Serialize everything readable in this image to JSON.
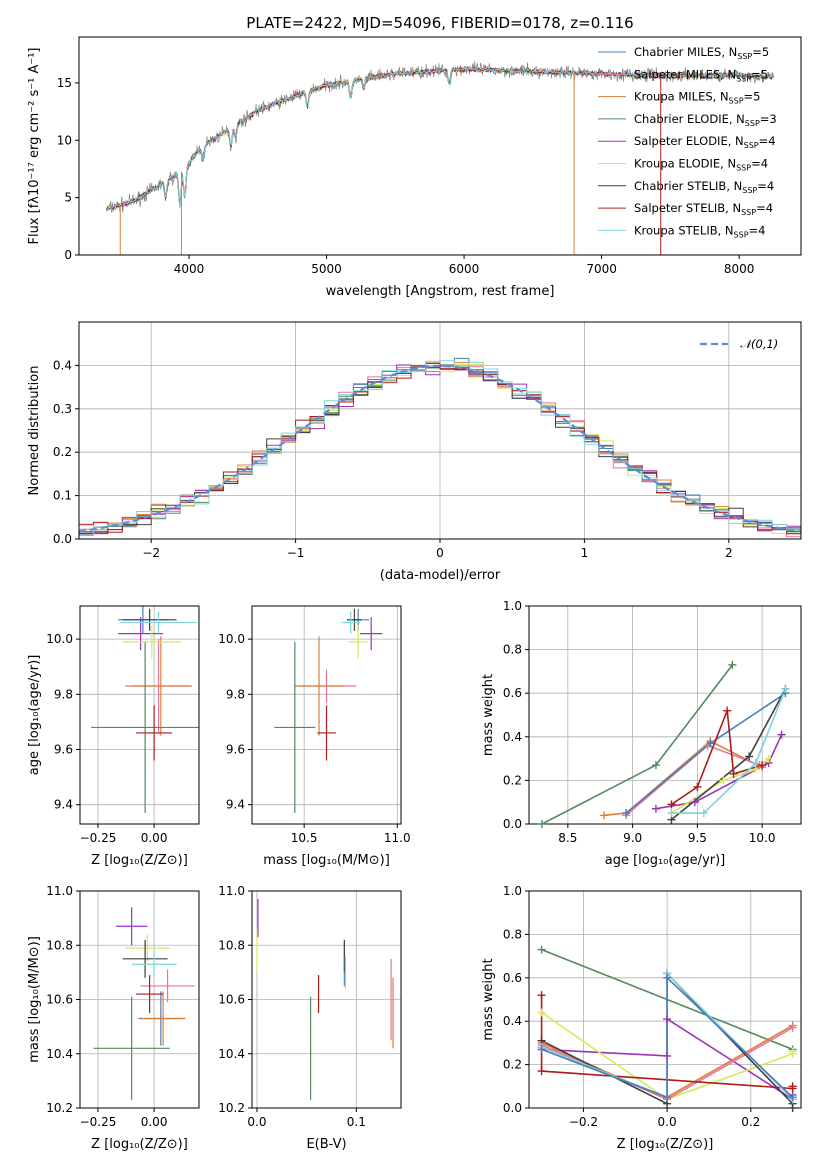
{
  "chart_data": [
    {
      "id": "spectrum",
      "type": "line",
      "title": "PLATE=2422, MJD=54096, FIBERID=0178, z=0.116",
      "xlabel": "wavelength [Angstrom, rest frame]",
      "ylabel": "Flux [fλ10⁻¹⁷ erg cm⁻² s⁻¹ A⁻¹]",
      "xlim": [
        3200,
        8450
      ],
      "ylim": [
        0,
        19
      ],
      "xticks": [
        "4000",
        "5000",
        "6000",
        "7000",
        "8000"
      ],
      "yticks": [
        "0",
        "5",
        "10",
        "15"
      ],
      "legend_position": "upper-right",
      "legend": [
        {
          "label": "Chabrier MILES, N",
          "sub": "SSP",
          "suffix": "=5",
          "color": "#4a7fbf"
        },
        {
          "label": "Salpeter MILES, N",
          "sub": "SSP",
          "suffix": "=5",
          "color": "#e8749a"
        },
        {
          "label": "Kroupa MILES, N",
          "sub": "SSP",
          "suffix": "=5",
          "color": "#d9813a"
        },
        {
          "label": "Chabrier ELODIE, N",
          "sub": "SSP",
          "suffix": "=3",
          "color": "#548a5e"
        },
        {
          "label": "Salpeter ELODIE, N",
          "sub": "SSP",
          "suffix": "=4",
          "color": "#9a35b8"
        },
        {
          "label": "Kroupa ELODIE, N",
          "sub": "SSP",
          "suffix": "=4",
          "color": "#d7ea5c"
        },
        {
          "label": "Chabrier STELIB, N",
          "sub": "SSP",
          "suffix": "=4",
          "color": "#404040"
        },
        {
          "label": "Salpeter STELIB, N",
          "sub": "SSP",
          "suffix": "=4",
          "color": "#b01b1b"
        },
        {
          "label": "Kroupa STELIB, N",
          "sub": "SSP",
          "suffix": "=4",
          "color": "#7fd3dc"
        }
      ],
      "continuum": {
        "x": [
          3400,
          3600,
          3800,
          3950,
          4100,
          4300,
          4500,
          4800,
          5000,
          5500,
          6000,
          6500,
          7000,
          7500,
          8000,
          8200
        ],
        "y": [
          4.0,
          4.7,
          6.2,
          7.3,
          9.5,
          11.0,
          12.6,
          14.0,
          14.8,
          15.8,
          16.2,
          16.0,
          15.8,
          15.6,
          15.7,
          15.5
        ]
      }
    },
    {
      "id": "residuals",
      "type": "bar",
      "xlabel": "(data-model)/error",
      "ylabel": "Normed distribution",
      "xlim": [
        -2.5,
        2.5
      ],
      "ylim": [
        0,
        0.5
      ],
      "xticks": [
        "−2",
        "−1",
        "0",
        "1",
        "2"
      ],
      "yticks": [
        "0.0",
        "0.1",
        "0.2",
        "0.3",
        "0.4"
      ],
      "legend": [
        {
          "label": "𝒩(0,1)",
          "color": "#5b8fd6"
        }
      ],
      "legend_position": "upper-right"
    },
    {
      "id": "age-vs-Z",
      "type": "scatter",
      "xlabel": "Z [log₁₀(Z/Z⊙)]",
      "ylabel": "age  [log₁₀(age/yr)]",
      "xlim": [
        -0.33,
        0.2
      ],
      "ylim": [
        9.33,
        10.12
      ],
      "xticks": [
        "−0.25",
        "0.00"
      ],
      "yticks": [
        "9.4",
        "9.6",
        "9.8",
        "10.0"
      ],
      "points": [
        {
          "x": -0.05,
          "y": 10.07,
          "xerr": 0.11,
          "yerr": 0.05,
          "color": "#4a7fbf"
        },
        {
          "x": 0.02,
          "y": 9.83,
          "xerr": 0.15,
          "yerr": 0.17,
          "color": "#e8749a"
        },
        {
          "x": 0.03,
          "y": 9.83,
          "xerr": 0.13,
          "yerr": 0.18,
          "color": "#d9813a"
        },
        {
          "x": -0.04,
          "y": 9.68,
          "xerr": 0.24,
          "yerr": 0.31,
          "color": "#548a5e"
        },
        {
          "x": -0.06,
          "y": 10.02,
          "xerr": 0.1,
          "yerr": 0.06,
          "color": "#9a35b8"
        },
        {
          "x": -0.01,
          "y": 9.99,
          "xerr": 0.13,
          "yerr": 0.06,
          "color": "#d7ea5c"
        },
        {
          "x": -0.02,
          "y": 10.07,
          "xerr": 0.12,
          "yerr": 0.04,
          "color": "#404040"
        },
        {
          "x": -0.0,
          "y": 9.66,
          "xerr": 0.08,
          "yerr": 0.1,
          "color": "#b01b1b"
        },
        {
          "x": 0.02,
          "y": 10.06,
          "xerr": 0.17,
          "yerr": 0.04,
          "color": "#7fd3dc"
        }
      ]
    },
    {
      "id": "age-vs-mass",
      "type": "scatter",
      "xlabel": "mass [log₁₀(M/M⊙)]",
      "ylabel": "",
      "xlim": [
        10.22,
        11.02
      ],
      "ylim": [
        9.33,
        10.12
      ],
      "xticks": [
        "10.5",
        "11.0"
      ],
      "yticks": [
        "9.4",
        "9.6",
        "9.8",
        "10.0"
      ],
      "points": [
        {
          "x": 10.79,
          "y": 10.07,
          "xerr": 0.06,
          "yerr": 0.04,
          "color": "#4a7fbf"
        },
        {
          "x": 10.62,
          "y": 9.83,
          "xerr": 0.16,
          "yerr": 0.06,
          "color": "#e8749a"
        },
        {
          "x": 10.58,
          "y": 9.83,
          "xerr": 0.13,
          "yerr": 0.18,
          "color": "#d9813a"
        },
        {
          "x": 10.45,
          "y": 9.68,
          "xerr": 0.11,
          "yerr": 0.31,
          "color": "#548a5e"
        },
        {
          "x": 10.86,
          "y": 10.02,
          "xerr": 0.06,
          "yerr": 0.06,
          "color": "#9a35b8"
        },
        {
          "x": 10.79,
          "y": 9.99,
          "xerr": 0.05,
          "yerr": 0.06,
          "color": "#d7ea5c"
        },
        {
          "x": 10.77,
          "y": 10.07,
          "xerr": 0.04,
          "yerr": 0.04,
          "color": "#404040"
        },
        {
          "x": 10.62,
          "y": 9.66,
          "xerr": 0.05,
          "yerr": 0.1,
          "color": "#b01b1b"
        },
        {
          "x": 10.75,
          "y": 10.06,
          "xerr": 0.05,
          "yerr": 0.04,
          "color": "#7fd3dc"
        }
      ]
    },
    {
      "id": "massweight-vs-age",
      "type": "line",
      "xlabel": "age  [log₁₀(age/yr)]",
      "ylabel": "mass weight",
      "xlim": [
        8.2,
        10.3
      ],
      "ylim": [
        0,
        1
      ],
      "xticks": [
        "8.5",
        "9.0",
        "9.5",
        "10.0"
      ],
      "yticks": [
        "0.0",
        "0.2",
        "0.4",
        "0.6",
        "0.8",
        "1.0"
      ],
      "series": [
        {
          "color": "#548a5e",
          "x": [
            8.3,
            9.18,
            9.77
          ],
          "y": [
            0.0,
            0.27,
            0.73
          ]
        },
        {
          "color": "#d9813a",
          "x": [
            8.78,
            8.95,
            9.6,
            10.0
          ],
          "y": [
            0.04,
            0.05,
            0.38,
            0.26
          ]
        },
        {
          "color": "#e8749a",
          "x": [
            8.95,
            9.58,
            9.98
          ],
          "y": [
            0.04,
            0.36,
            0.27
          ]
        },
        {
          "color": "#4a7fbf",
          "x": [
            8.95,
            9.6,
            10.18
          ],
          "y": [
            0.05,
            0.37,
            0.6
          ]
        },
        {
          "color": "#9a35b8",
          "x": [
            9.18,
            9.48,
            10.05,
            10.15
          ],
          "y": [
            0.07,
            0.1,
            0.28,
            0.41
          ]
        },
        {
          "color": "#d7ea5c",
          "x": [
            9.3,
            9.7,
            9.95,
            10.05
          ],
          "y": [
            0.05,
            0.2,
            0.25,
            0.3
          ]
        },
        {
          "color": "#404040",
          "x": [
            9.3,
            9.9,
            10.18
          ],
          "y": [
            0.02,
            0.31,
            0.62
          ]
        },
        {
          "color": "#b01b1b",
          "x": [
            9.3,
            9.5,
            9.73,
            9.78,
            10.0
          ],
          "y": [
            0.09,
            0.17,
            0.52,
            0.23,
            0.27
          ]
        },
        {
          "color": "#7fd3dc",
          "x": [
            9.3,
            9.55,
            9.95,
            10.18
          ],
          "y": [
            0.05,
            0.05,
            0.28,
            0.62
          ]
        }
      ]
    },
    {
      "id": "mass-vs-Z",
      "type": "scatter",
      "xlabel": "Z [log₁₀(Z/Z⊙)]",
      "ylabel": "mass [log₁₀(M/M⊙)]",
      "xlim": [
        -0.33,
        0.2
      ],
      "ylim": [
        10.2,
        11.0
      ],
      "xticks": [
        "−0.25",
        "0.00"
      ],
      "yticks": [
        "10.2",
        "10.4",
        "10.6",
        "10.8",
        "11.0"
      ],
      "points": [
        {
          "x": 0.03,
          "y": 10.53,
          "xerr": 0.1,
          "yerr": 0.1,
          "color": "#4a7fbf"
        },
        {
          "x": 0.06,
          "y": 10.65,
          "xerr": 0.12,
          "yerr": 0.06,
          "color": "#e8749a"
        },
        {
          "x": 0.04,
          "y": 10.53,
          "xerr": 0.1,
          "yerr": 0.1,
          "color": "#d9813a"
        },
        {
          "x": -0.1,
          "y": 10.42,
          "xerr": 0.17,
          "yerr": 0.19,
          "color": "#548a5e"
        },
        {
          "x": -0.1,
          "y": 10.87,
          "xerr": 0.07,
          "yerr": 0.07,
          "color": "#9a35b8"
        },
        {
          "x": -0.03,
          "y": 10.79,
          "xerr": 0.1,
          "yerr": 0.05,
          "color": "#d7ea5c"
        },
        {
          "x": -0.04,
          "y": 10.75,
          "xerr": 0.1,
          "yerr": 0.07,
          "color": "#404040"
        },
        {
          "x": -0.02,
          "y": 10.62,
          "xerr": 0.06,
          "yerr": 0.07,
          "color": "#b01b1b"
        },
        {
          "x": 0.0,
          "y": 10.73,
          "xerr": 0.1,
          "yerr": 0.05,
          "color": "#7fd3dc"
        }
      ]
    },
    {
      "id": "mass-vs-ebv",
      "type": "scatter",
      "xlabel": "E(B-V)",
      "ylabel": "",
      "xlim": [
        -0.005,
        0.145
      ],
      "ylim": [
        10.2,
        11.0
      ],
      "xticks": [
        "0.0",
        "0.1"
      ],
      "yticks": [
        "10.2",
        "10.4",
        "10.6",
        "10.8",
        "11.0"
      ],
      "points": [
        {
          "x": 0.088,
          "y": 10.73,
          "xerr": 0,
          "yerr": 0.08,
          "color": "#4a7fbf"
        },
        {
          "x": 0.135,
          "y": 10.6,
          "xerr": 0,
          "yerr": 0.15,
          "color": "#e8749a"
        },
        {
          "x": 0.137,
          "y": 10.55,
          "xerr": 0,
          "yerr": 0.13,
          "color": "#d9813a"
        },
        {
          "x": 0.054,
          "y": 10.42,
          "xerr": 0,
          "yerr": 0.19,
          "color": "#548a5e"
        },
        {
          "x": 0.001,
          "y": 10.9,
          "xerr": 0,
          "yerr": 0.07,
          "color": "#9a35b8"
        },
        {
          "x": 0.0,
          "y": 10.78,
          "xerr": 0,
          "yerr": 0.08,
          "color": "#d7ea5c"
        },
        {
          "x": 0.088,
          "y": 10.76,
          "xerr": 0,
          "yerr": 0.06,
          "color": "#404040"
        },
        {
          "x": 0.062,
          "y": 10.62,
          "xerr": 0,
          "yerr": 0.07,
          "color": "#b01b1b"
        },
        {
          "x": 0.089,
          "y": 10.7,
          "xerr": 0,
          "yerr": 0.06,
          "color": "#7fd3dc"
        }
      ]
    },
    {
      "id": "massweight-vs-Z",
      "type": "line",
      "xlabel": "Z [log₁₀(Z/Z⊙)]",
      "ylabel": "mass weight",
      "xlim": [
        -0.33,
        0.32
      ],
      "ylim": [
        0,
        1
      ],
      "xticks": [
        "−0.2",
        "0.0",
        "0.2"
      ],
      "yticks": [
        "0.0",
        "0.2",
        "0.4",
        "0.6",
        "0.8",
        "1.0"
      ],
      "series": [
        {
          "color": "#548a5e",
          "x": [
            -0.3,
            0.3
          ],
          "y": [
            0.73,
            0.27
          ]
        },
        {
          "color": "#9a35b8",
          "x": [
            -0.3,
            0.0,
            0.0,
            0.3,
            0.3
          ],
          "y": [
            0.27,
            0.24,
            0.41,
            0.04,
            0.06
          ]
        },
        {
          "color": "#d7ea5c",
          "x": [
            -0.3,
            0.0,
            0.3,
            0.3
          ],
          "y": [
            0.44,
            0.04,
            0.25,
            0.26
          ]
        },
        {
          "color": "#d9813a",
          "x": [
            -0.3,
            0.0,
            0.0,
            0.3
          ],
          "y": [
            0.3,
            0.04,
            0.05,
            0.38
          ]
        },
        {
          "color": "#e8749a",
          "x": [
            -0.3,
            0.0,
            0.3
          ],
          "y": [
            0.29,
            0.04,
            0.37
          ]
        },
        {
          "color": "#404040",
          "x": [
            -0.3,
            0.0,
            0.0,
            0.3,
            0.3
          ],
          "y": [
            0.31,
            0.02,
            0.62,
            0.02,
            0.0
          ]
        },
        {
          "color": "#b01b1b",
          "x": [
            -0.3,
            -0.3,
            0.3,
            0.3
          ],
          "y": [
            0.52,
            0.17,
            0.09,
            0.1
          ]
        },
        {
          "color": "#7fd3dc",
          "x": [
            -0.3,
            0.0,
            0.0,
            0.3
          ],
          "y": [
            0.28,
            0.05,
            0.62,
            0.04
          ]
        },
        {
          "color": "#4a7fbf",
          "x": [
            -0.3,
            0.0,
            0.0,
            0.3
          ],
          "y": [
            0.27,
            0.05,
            0.6,
            0.05
          ]
        }
      ]
    }
  ]
}
